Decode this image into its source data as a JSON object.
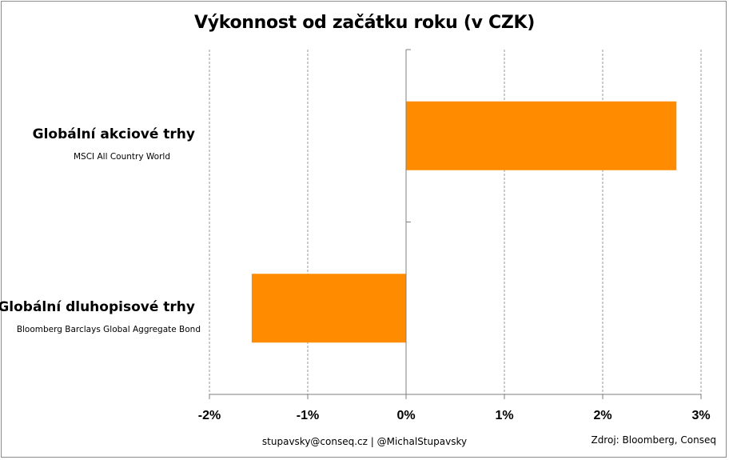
{
  "chart_data": {
    "type": "bar",
    "orientation": "horizontal",
    "title": "Výkonnost od začátku roku (v CZK)",
    "categories": [
      {
        "label": "Globální akciové trhy",
        "sublabel": "MSCI All Country World"
      },
      {
        "label": "Globální dluhopisové trhy",
        "sublabel": "Bloomberg Barclays Global Aggregate Bond"
      }
    ],
    "values": [
      2.75,
      -1.57
    ],
    "unit": "%",
    "xlim": [
      -2,
      3
    ],
    "xticks": [
      -2,
      -1,
      0,
      1,
      2,
      3
    ],
    "xtick_labels": [
      "-2%",
      "-1%",
      "0%",
      "1%",
      "2%",
      "3%"
    ],
    "grid": "vertical dashed",
    "bar_color": "#FF8C00",
    "legend": "none"
  },
  "footer": {
    "contact": "stupavsky@conseq.cz  |  @MichalStupavsky",
    "source": "Zdroj: Bloomberg, Conseq"
  }
}
